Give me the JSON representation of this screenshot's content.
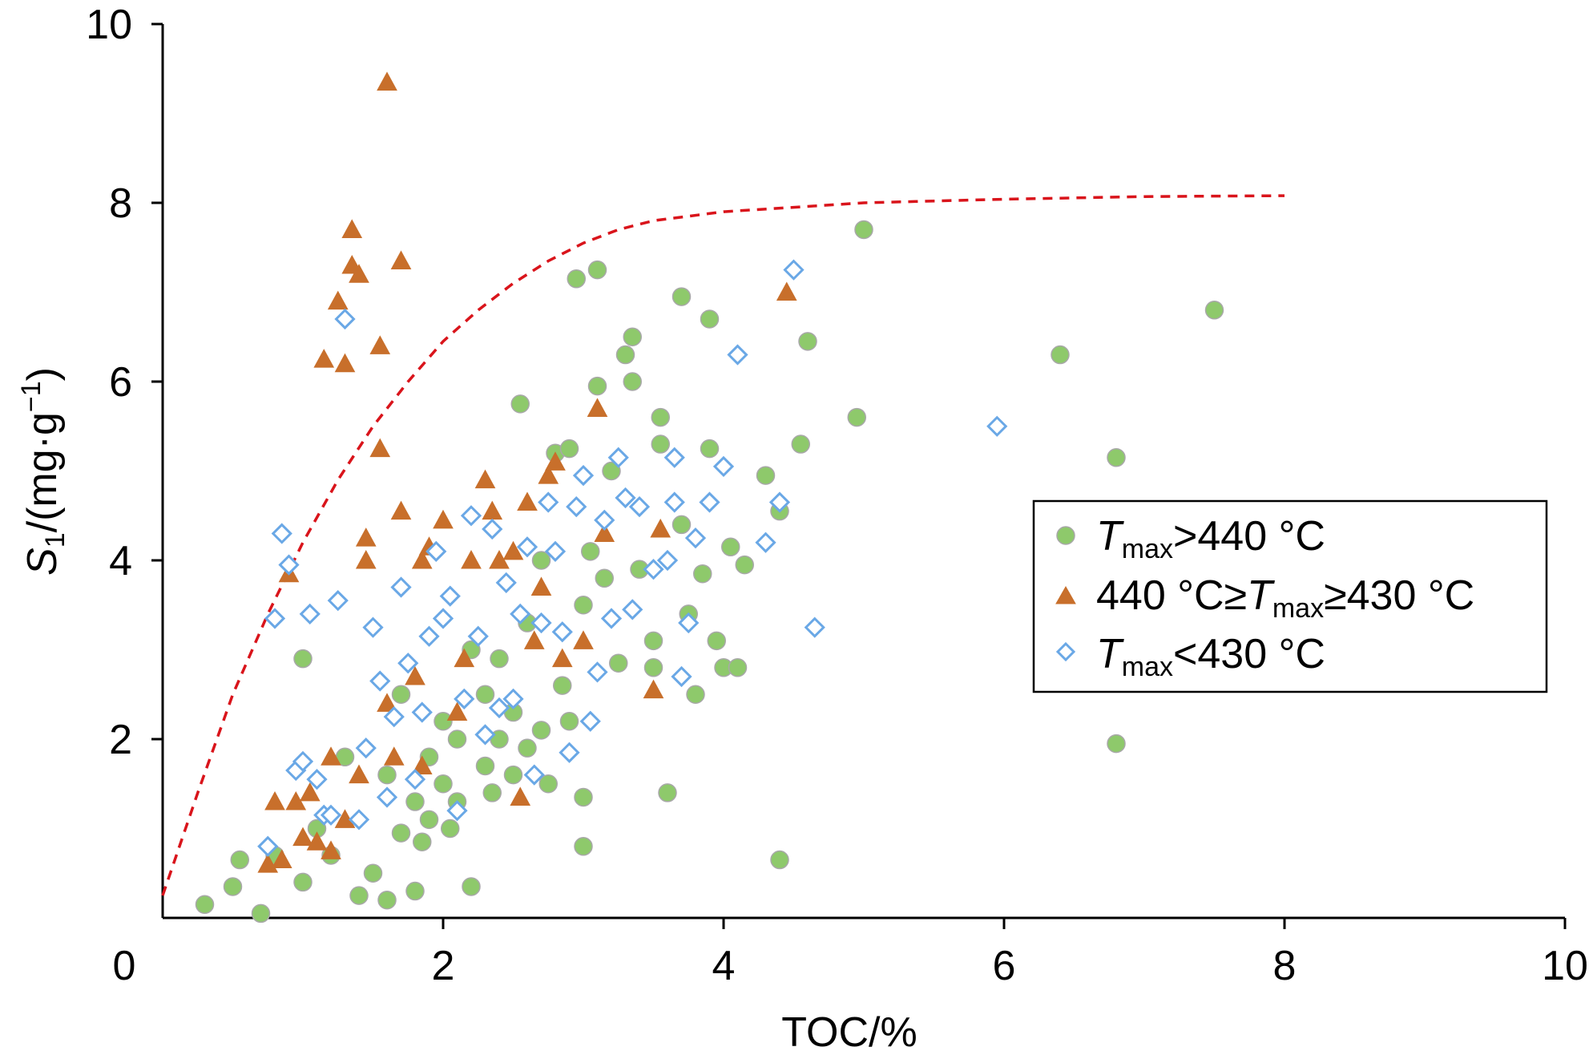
{
  "chart_data": {
    "type": "scatter",
    "title": "",
    "xlabel": "TOC/%",
    "ylabel": {
      "var": "S",
      "sub": "1",
      "rest": "/(mg·g",
      "sup": "−1",
      "close": ")"
    },
    "xlim": [
      0,
      10
    ],
    "ylim": [
      0,
      10
    ],
    "x_ticks": [
      "0",
      "2",
      "4",
      "6",
      "8",
      "10"
    ],
    "y_ticks": [
      "2",
      "4",
      "6",
      "8",
      "10"
    ],
    "grid": false,
    "legend_position": "right",
    "colors": {
      "green": "#8ec96b",
      "green_stroke": "#a8a8a8",
      "orange": "#c86f2b",
      "blue": "#6aa8e6",
      "curve": "#d9141b"
    },
    "legend": [
      {
        "marker": "circle",
        "pre": "",
        "var": "T",
        "sub": "max",
        "post": ">440 °C"
      },
      {
        "marker": "triangle",
        "pre": "440 °C≥",
        "var": "T",
        "sub": "max",
        "post": "≥430 °C"
      },
      {
        "marker": "diamond",
        "pre": "",
        "var": "T",
        "sub": "max",
        "post": "<430 °C"
      }
    ],
    "curve": {
      "style": "dashed",
      "points": [
        [
          0,
          0.25
        ],
        [
          0.25,
          1.4
        ],
        [
          0.5,
          2.5
        ],
        [
          0.75,
          3.4
        ],
        [
          1,
          4.2
        ],
        [
          1.25,
          4.9
        ],
        [
          1.5,
          5.5
        ],
        [
          1.75,
          6.0
        ],
        [
          2,
          6.45
        ],
        [
          2.25,
          6.8
        ],
        [
          2.5,
          7.1
        ],
        [
          2.75,
          7.35
        ],
        [
          3,
          7.55
        ],
        [
          3.25,
          7.7
        ],
        [
          3.5,
          7.8
        ],
        [
          4,
          7.9
        ],
        [
          4.5,
          7.95
        ],
        [
          5,
          8.0
        ],
        [
          6,
          8.04
        ],
        [
          7,
          8.07
        ],
        [
          8,
          8.08
        ]
      ]
    },
    "series": [
      {
        "name": "Tmax>440 °C",
        "marker": "circle",
        "points": [
          [
            0.3,
            0.15
          ],
          [
            0.5,
            0.35
          ],
          [
            0.55,
            0.65
          ],
          [
            0.7,
            0.05
          ],
          [
            0.8,
            0.7
          ],
          [
            1.0,
            2.9
          ],
          [
            1.0,
            0.4
          ],
          [
            1.1,
            1.0
          ],
          [
            1.2,
            0.7
          ],
          [
            1.3,
            1.8
          ],
          [
            1.4,
            0.25
          ],
          [
            1.5,
            0.5
          ],
          [
            1.6,
            0.2
          ],
          [
            1.6,
            1.6
          ],
          [
            1.7,
            0.95
          ],
          [
            1.7,
            2.5
          ],
          [
            1.8,
            0.3
          ],
          [
            1.8,
            1.3
          ],
          [
            1.85,
            0.85
          ],
          [
            1.9,
            1.1
          ],
          [
            1.9,
            1.8
          ],
          [
            2.0,
            1.5
          ],
          [
            2.0,
            2.2
          ],
          [
            2.05,
            1.0
          ],
          [
            2.1,
            2.0
          ],
          [
            2.1,
            1.3
          ],
          [
            2.2,
            3.0
          ],
          [
            2.2,
            0.35
          ],
          [
            2.3,
            1.7
          ],
          [
            2.3,
            2.5
          ],
          [
            2.35,
            1.4
          ],
          [
            2.4,
            2.9
          ],
          [
            2.4,
            2.0
          ],
          [
            2.5,
            2.3
          ],
          [
            2.5,
            1.6
          ],
          [
            2.55,
            5.75
          ],
          [
            2.6,
            1.9
          ],
          [
            2.6,
            3.3
          ],
          [
            2.7,
            2.1
          ],
          [
            2.7,
            4.0
          ],
          [
            2.75,
            1.5
          ],
          [
            2.8,
            5.2
          ],
          [
            2.85,
            2.6
          ],
          [
            2.9,
            2.2
          ],
          [
            2.9,
            5.25
          ],
          [
            2.95,
            7.15
          ],
          [
            3.0,
            0.8
          ],
          [
            3.0,
            1.35
          ],
          [
            3.0,
            3.5
          ],
          [
            3.05,
            4.1
          ],
          [
            3.1,
            5.95
          ],
          [
            3.1,
            7.25
          ],
          [
            3.15,
            3.8
          ],
          [
            3.2,
            5.0
          ],
          [
            3.25,
            2.85
          ],
          [
            3.3,
            6.3
          ],
          [
            3.35,
            6.0
          ],
          [
            3.35,
            6.5
          ],
          [
            3.4,
            3.9
          ],
          [
            3.5,
            3.1
          ],
          [
            3.5,
            2.8
          ],
          [
            3.55,
            5.3
          ],
          [
            3.55,
            5.6
          ],
          [
            3.6,
            1.4
          ],
          [
            3.7,
            6.95
          ],
          [
            3.7,
            4.4
          ],
          [
            3.75,
            3.4
          ],
          [
            3.8,
            2.5
          ],
          [
            3.85,
            3.85
          ],
          [
            3.9,
            6.7
          ],
          [
            3.9,
            5.25
          ],
          [
            3.95,
            3.1
          ],
          [
            4.0,
            2.8
          ],
          [
            4.05,
            4.15
          ],
          [
            4.1,
            2.8
          ],
          [
            4.15,
            3.95
          ],
          [
            4.3,
            4.95
          ],
          [
            4.4,
            0.65
          ],
          [
            4.4,
            4.55
          ],
          [
            4.55,
            5.3
          ],
          [
            4.6,
            6.45
          ],
          [
            4.95,
            5.6
          ],
          [
            5.0,
            7.7
          ],
          [
            6.4,
            6.3
          ],
          [
            6.8,
            1.95
          ],
          [
            6.8,
            5.15
          ],
          [
            7.5,
            6.8
          ]
        ]
      },
      {
        "name": "440 °C≥Tmax≥430 °C",
        "marker": "triangle",
        "points": [
          [
            0.75,
            0.6
          ],
          [
            0.8,
            1.3
          ],
          [
            0.85,
            0.65
          ],
          [
            0.9,
            3.85
          ],
          [
            0.95,
            1.3
          ],
          [
            1.0,
            0.9
          ],
          [
            1.05,
            1.4
          ],
          [
            1.1,
            0.85
          ],
          [
            1.15,
            6.25
          ],
          [
            1.2,
            0.75
          ],
          [
            1.2,
            1.8
          ],
          [
            1.25,
            6.9
          ],
          [
            1.3,
            1.1
          ],
          [
            1.3,
            6.2
          ],
          [
            1.35,
            7.3
          ],
          [
            1.35,
            7.7
          ],
          [
            1.4,
            7.2
          ],
          [
            1.4,
            1.6
          ],
          [
            1.45,
            4.25
          ],
          [
            1.45,
            4.0
          ],
          [
            1.55,
            6.4
          ],
          [
            1.55,
            5.25
          ],
          [
            1.6,
            9.35
          ],
          [
            1.6,
            2.4
          ],
          [
            1.65,
            1.8
          ],
          [
            1.7,
            7.35
          ],
          [
            1.7,
            4.55
          ],
          [
            1.8,
            2.7
          ],
          [
            1.85,
            4.0
          ],
          [
            1.85,
            1.7
          ],
          [
            1.9,
            4.15
          ],
          [
            2.0,
            4.45
          ],
          [
            2.1,
            2.3
          ],
          [
            2.15,
            2.9
          ],
          [
            2.2,
            4.0
          ],
          [
            2.3,
            4.9
          ],
          [
            2.35,
            4.55
          ],
          [
            2.4,
            4.0
          ],
          [
            2.5,
            4.1
          ],
          [
            2.55,
            1.35
          ],
          [
            2.6,
            4.65
          ],
          [
            2.65,
            3.1
          ],
          [
            2.7,
            3.7
          ],
          [
            2.75,
            4.95
          ],
          [
            2.8,
            5.1
          ],
          [
            2.85,
            2.9
          ],
          [
            3.0,
            3.1
          ],
          [
            3.1,
            5.7
          ],
          [
            3.15,
            4.3
          ],
          [
            3.5,
            2.55
          ],
          [
            3.55,
            4.35
          ],
          [
            4.45,
            7.0
          ]
        ]
      },
      {
        "name": "Tmax<430 °C",
        "marker": "diamond",
        "points": [
          [
            0.75,
            0.8
          ],
          [
            0.8,
            3.35
          ],
          [
            0.85,
            4.3
          ],
          [
            0.9,
            3.95
          ],
          [
            0.95,
            1.65
          ],
          [
            1.0,
            1.75
          ],
          [
            1.05,
            3.4
          ],
          [
            1.1,
            1.55
          ],
          [
            1.15,
            1.15
          ],
          [
            1.2,
            1.15
          ],
          [
            1.25,
            3.55
          ],
          [
            1.3,
            6.7
          ],
          [
            1.4,
            1.1
          ],
          [
            1.45,
            1.9
          ],
          [
            1.5,
            3.25
          ],
          [
            1.55,
            2.65
          ],
          [
            1.6,
            1.35
          ],
          [
            1.65,
            2.25
          ],
          [
            1.7,
            3.7
          ],
          [
            1.75,
            2.85
          ],
          [
            1.8,
            1.55
          ],
          [
            1.85,
            2.3
          ],
          [
            1.9,
            3.15
          ],
          [
            1.95,
            4.1
          ],
          [
            2.0,
            3.35
          ],
          [
            2.05,
            3.6
          ],
          [
            2.1,
            1.2
          ],
          [
            2.15,
            2.45
          ],
          [
            2.2,
            4.5
          ],
          [
            2.25,
            3.15
          ],
          [
            2.3,
            2.05
          ],
          [
            2.35,
            4.35
          ],
          [
            2.4,
            2.35
          ],
          [
            2.45,
            3.75
          ],
          [
            2.5,
            2.45
          ],
          [
            2.55,
            3.4
          ],
          [
            2.6,
            4.15
          ],
          [
            2.65,
            1.6
          ],
          [
            2.7,
            3.3
          ],
          [
            2.75,
            4.65
          ],
          [
            2.8,
            4.1
          ],
          [
            2.85,
            3.2
          ],
          [
            2.9,
            1.85
          ],
          [
            2.95,
            4.6
          ],
          [
            3.0,
            4.95
          ],
          [
            3.05,
            2.2
          ],
          [
            3.1,
            2.75
          ],
          [
            3.15,
            4.45
          ],
          [
            3.2,
            3.35
          ],
          [
            3.25,
            5.15
          ],
          [
            3.3,
            4.7
          ],
          [
            3.35,
            3.45
          ],
          [
            3.4,
            4.6
          ],
          [
            3.5,
            3.9
          ],
          [
            3.6,
            4.0
          ],
          [
            3.65,
            4.65
          ],
          [
            3.65,
            5.15
          ],
          [
            3.7,
            2.7
          ],
          [
            3.75,
            3.3
          ],
          [
            3.8,
            4.25
          ],
          [
            3.9,
            4.65
          ],
          [
            4.0,
            5.05
          ],
          [
            4.1,
            6.3
          ],
          [
            4.3,
            4.2
          ],
          [
            4.4,
            4.65
          ],
          [
            4.5,
            7.25
          ],
          [
            4.65,
            3.25
          ],
          [
            5.95,
            5.5
          ]
        ]
      }
    ]
  }
}
